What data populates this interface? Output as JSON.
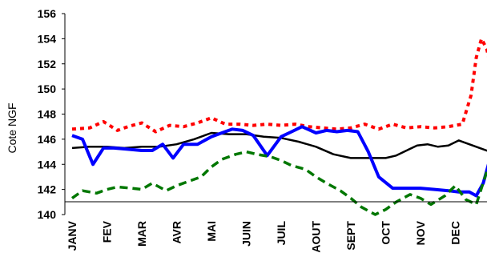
{
  "chart_data": {
    "type": "line",
    "title": "",
    "xlabel": "",
    "ylabel": "Cote NGF",
    "ylim": [
      140,
      156
    ],
    "yticks": [
      140,
      142,
      144,
      146,
      148,
      150,
      152,
      154,
      156
    ],
    "categories": [
      "JANV",
      "FEV",
      "MAR",
      "AVR",
      "MAI",
      "JUIN",
      "JUIL",
      "AOUT",
      "SEPT",
      "OCT",
      "NOV",
      "DEC"
    ],
    "grid": false,
    "legend": "none",
    "series": [
      {
        "color": "#ff0000",
        "style": "dotted",
        "x": [
          0,
          0.5,
          0.9,
          1.3,
          1.6,
          2,
          2.4,
          2.8,
          3.2,
          3.6,
          4,
          4.4,
          4.8,
          5.2,
          5.6,
          6,
          6.4,
          6.8,
          7.2,
          7.6,
          8,
          8.4,
          8.8,
          9.2,
          9.6,
          10,
          10.4,
          10.8,
          11.2,
          11.45,
          11.6,
          11.75,
          11.9,
          12
        ],
        "y": [
          146.8,
          146.9,
          147.4,
          146.7,
          147.0,
          147.3,
          146.6,
          147.1,
          147.0,
          147.3,
          147.7,
          147.2,
          147.2,
          147.1,
          147.2,
          147.1,
          147.2,
          147.0,
          146.9,
          146.8,
          146.9,
          147.2,
          146.8,
          147.2,
          146.9,
          147.0,
          146.9,
          147.0,
          147.2,
          149.5,
          152.5,
          154.0,
          153.2,
          152.0
        ]
      },
      {
        "color": "#000000",
        "style": "solid",
        "x": [
          0,
          0.5,
          1,
          1.5,
          2,
          2.5,
          3,
          3.5,
          4,
          4.5,
          5,
          5.5,
          6,
          6.5,
          7,
          7.5,
          8,
          8.3,
          8.6,
          9,
          9.3,
          9.6,
          9.9,
          10.2,
          10.5,
          10.8,
          11.1,
          11.4,
          11.7,
          12
        ],
        "y": [
          145.3,
          145.4,
          145.4,
          145.3,
          145.4,
          145.4,
          145.6,
          146.0,
          146.5,
          146.4,
          146.4,
          146.2,
          146.1,
          145.8,
          145.4,
          144.8,
          144.5,
          144.5,
          144.5,
          144.5,
          144.7,
          145.1,
          145.5,
          145.6,
          145.4,
          145.5,
          145.9,
          145.6,
          145.3,
          145.0
        ]
      },
      {
        "color": "#0000ff",
        "style": "solid",
        "x": [
          0,
          0.3,
          0.6,
          0.9,
          1.2,
          1.6,
          2,
          2.3,
          2.6,
          2.9,
          3.2,
          3.6,
          4,
          4.3,
          4.6,
          4.9,
          5.2,
          5.6,
          6,
          6.3,
          6.6,
          7,
          7.3,
          7.6,
          7.9,
          8.2,
          8.5,
          8.8,
          9.2,
          9.6,
          10,
          10.4,
          10.8,
          11.1,
          11.4,
          11.6,
          11.8,
          12
        ],
        "y": [
          146.3,
          146.0,
          144.0,
          145.3,
          145.3,
          145.2,
          145.1,
          145.1,
          145.6,
          144.5,
          145.6,
          145.6,
          146.2,
          146.5,
          146.8,
          146.7,
          146.3,
          144.7,
          146.2,
          146.6,
          147.0,
          146.5,
          146.7,
          146.6,
          146.7,
          146.6,
          145.0,
          143.0,
          142.1,
          142.1,
          142.1,
          142.0,
          141.9,
          141.8,
          141.8,
          141.5,
          142.5,
          144.5
        ]
      },
      {
        "color": "#007700",
        "style": "dashed",
        "x": [
          0,
          0.3,
          0.7,
          1,
          1.3,
          1.7,
          2,
          2.3,
          2.7,
          3,
          3.3,
          3.7,
          4,
          4.3,
          4.7,
          5,
          5.3,
          5.7,
          6,
          6.3,
          6.7,
          7,
          7.3,
          7.7,
          8,
          8.3,
          8.7,
          9,
          9.3,
          9.7,
          10,
          10.3,
          10.7,
          11,
          11.3,
          11.6,
          11.9,
          12
        ],
        "y": [
          141.3,
          141.9,
          141.7,
          142.0,
          142.2,
          142.1,
          142.0,
          142.5,
          141.9,
          142.3,
          142.6,
          143.0,
          143.8,
          144.4,
          144.8,
          145.0,
          144.8,
          144.6,
          144.3,
          143.9,
          143.6,
          143.0,
          142.5,
          141.9,
          141.3,
          140.6,
          140.0,
          140.4,
          141.0,
          141.6,
          141.3,
          140.8,
          141.5,
          142.3,
          141.2,
          140.8,
          143.4,
          142.6
        ]
      }
    ]
  }
}
